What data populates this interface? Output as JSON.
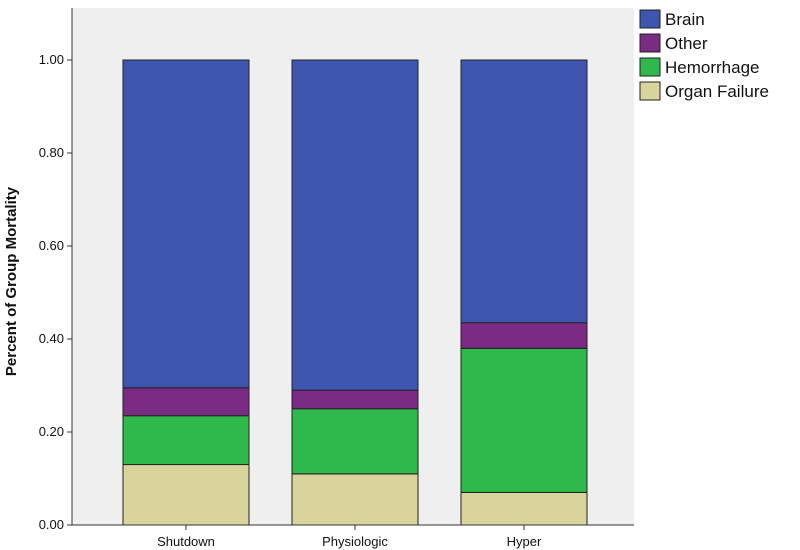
{
  "chart_data": {
    "type": "bar",
    "stacked": true,
    "categories": [
      "Shutdown",
      "Physiologic",
      "Hyper"
    ],
    "series": [
      {
        "name": "Organ Failure",
        "color": "#d9d39c",
        "values": [
          0.13,
          0.11,
          0.07
        ]
      },
      {
        "name": "Hemorrhage",
        "color": "#2fb84b",
        "values": [
          0.105,
          0.14,
          0.31
        ]
      },
      {
        "name": "Other",
        "color": "#7a2c84",
        "values": [
          0.06,
          0.04,
          0.055
        ]
      },
      {
        "name": "Brain",
        "color": "#3f56b0",
        "values": [
          0.705,
          0.71,
          0.565
        ]
      }
    ],
    "legend_order": [
      "Brain",
      "Other",
      "Hemorrhage",
      "Organ Failure"
    ],
    "ylabel": "Percent of Group Mortality",
    "xlabel": "",
    "ylim": [
      0,
      1.0
    ],
    "yticks": [
      "0.00",
      "0.20",
      "0.40",
      "0.60",
      "0.80",
      "1.00"
    ],
    "grid": false,
    "legend_position": "top-right",
    "plot_background": "#efefef"
  }
}
